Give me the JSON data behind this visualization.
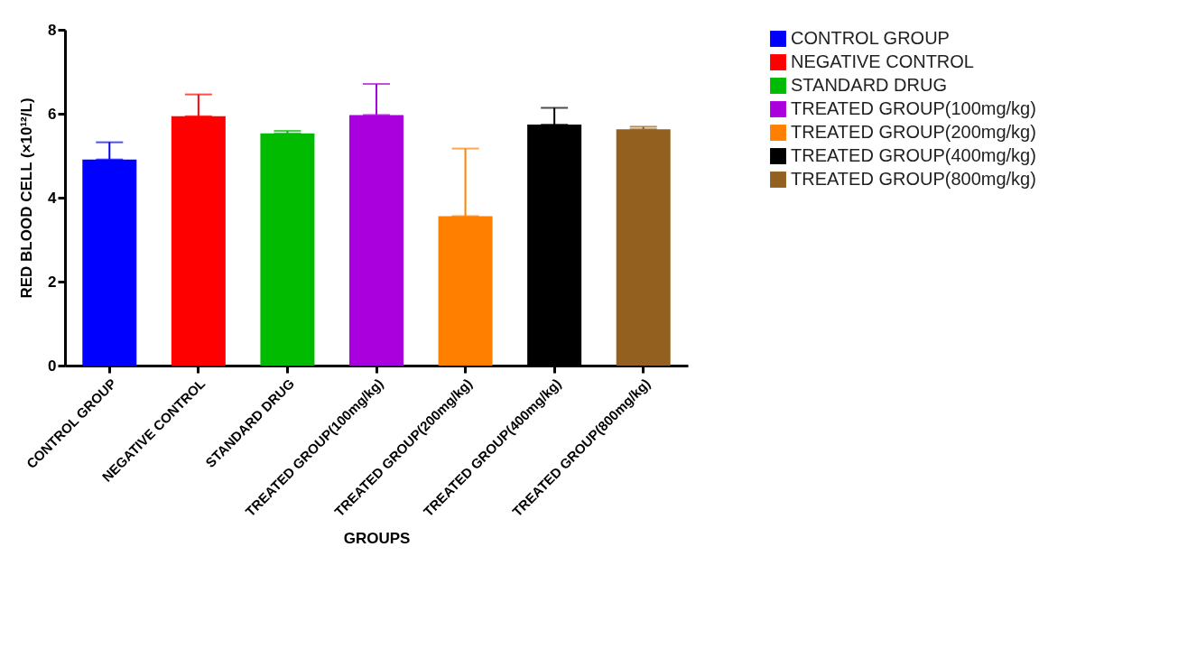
{
  "chart_data": {
    "type": "bar",
    "xlabel": "GROUPS",
    "ylabel": "RED BLOOD CELL (×10¹²/L)",
    "categories": [
      "CONTROL GROUP",
      "NEGATIVE CONTROL",
      "STANDARD DRUG",
      "TREATED GROUP(100mg/kg)",
      "TREATED GROUP(200mg/kg)",
      "TREATED GROUP(400mg/kg)",
      "TREATED GROUP(800mg/kg)"
    ],
    "stacked": true,
    "series": [
      {
        "name": "CONTROL GROUP",
        "color": "#0000ff",
        "values": [
          4.91,
          null,
          null,
          null,
          null,
          null,
          null
        ],
        "errors": [
          [
            4.91,
            5.32
          ],
          null,
          null,
          null,
          null,
          null,
          null
        ]
      },
      {
        "name": "NEGATIVE CONTROL",
        "color": "#ff0000",
        "values": [
          null,
          5.94,
          null,
          null,
          null,
          null,
          null
        ],
        "errors": [
          null,
          [
            5.94,
            6.46
          ],
          null,
          null,
          null,
          null,
          null
        ]
      },
      {
        "name": "STANDARD DRUG",
        "color": "#00bb00",
        "values": [
          null,
          null,
          5.53,
          null,
          null,
          null,
          null
        ],
        "errors": [
          null,
          null,
          [
            5.53,
            5.59
          ],
          null,
          null,
          null,
          null
        ]
      },
      {
        "name": "TREATED GROUP(100mg/kg)",
        "color": "#aa00dd",
        "values": [
          null,
          null,
          null,
          5.97,
          null,
          null,
          null
        ],
        "errors": [
          null,
          null,
          null,
          [
            5.97,
            6.71
          ],
          null,
          null,
          null
        ]
      },
      {
        "name": "TREATED GROUP(200mg/kg)",
        "color": "#ff8000",
        "values": [
          null,
          null,
          null,
          null,
          3.56,
          null,
          null
        ],
        "errors": [
          null,
          null,
          null,
          null,
          [
            3.56,
            5.17
          ],
          null,
          null
        ]
      },
      {
        "name": "TREATED GROUP(400mg/kg)",
        "color": "#000000",
        "values": [
          null,
          null,
          null,
          null,
          null,
          5.74,
          null
        ],
        "errors": [
          null,
          null,
          null,
          null,
          null,
          [
            5.74,
            6.14
          ],
          null
        ]
      },
      {
        "name": "TREATED GROUP(800mg/kg)",
        "color": "#946020",
        "values": [
          null,
          null,
          null,
          null,
          null,
          null,
          5.63
        ],
        "errors": [
          null,
          null,
          null,
          null,
          null,
          null,
          [
            5.63,
            5.69
          ]
        ]
      }
    ],
    "ylim": [
      0,
      8
    ],
    "yticks": [
      0,
      2,
      4,
      6,
      8
    ],
    "grid": false,
    "legend": "right"
  }
}
